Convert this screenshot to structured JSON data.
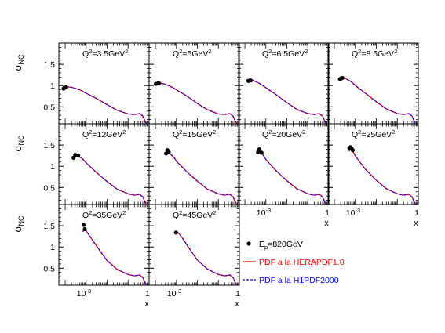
{
  "colors": {
    "data_points": "#000000",
    "herapdf": "#ff0000",
    "h1pdf": "#0000ff",
    "frame": "#000000",
    "background": "#ffffff"
  },
  "legend": {
    "data": {
      "main": "E",
      "sub": "p",
      "rest": "=820GeV"
    },
    "herapdf": "PDF a la HERAPDF1.0",
    "h1pdf": "PDF a la H1PDF2000"
  },
  "chart_data": {
    "type": "scatter",
    "y_axis_label": {
      "main": "σ",
      "sub": "NC"
    },
    "x_axis_label": "x",
    "x_scale": "log",
    "x_range": [
      5e-05,
      1
    ],
    "y_range": [
      0.1,
      2.0
    ],
    "y_ticks": [
      {
        "value": 0.5,
        "label": "0.5"
      },
      {
        "value": 1.0,
        "label": "1"
      },
      {
        "value": 1.5,
        "label": "1.5"
      }
    ],
    "x_ticks": [
      {
        "value": 0.001,
        "base": "10",
        "exp": "-3"
      },
      {
        "value": 1,
        "label": "1"
      }
    ],
    "panels": [
      {
        "label": {
          "pre": "Q",
          "sup": "2",
          "mid": "=3.5GeV",
          "sup2": "2"
        },
        "q2": 3.5,
        "points": [
          {
            "x": 8.5e-05,
            "y": 0.93
          },
          {
            "x": 9.5e-05,
            "y": 0.95
          },
          {
            "x": 0.000112,
            "y": 0.96
          }
        ],
        "curve": [
          [
            8e-05,
            0.9
          ],
          [
            0.0001,
            0.94
          ],
          [
            0.00013,
            0.97
          ],
          [
            0.0002,
            0.96
          ],
          [
            0.0005,
            0.9
          ],
          [
            0.001,
            0.82
          ],
          [
            0.003,
            0.7
          ],
          [
            0.01,
            0.55
          ],
          [
            0.03,
            0.42
          ],
          [
            0.1,
            0.33
          ],
          [
            0.2,
            0.32
          ],
          [
            0.35,
            0.34
          ],
          [
            0.5,
            0.28
          ],
          [
            0.65,
            0.15
          ],
          [
            0.75,
            0.11
          ]
        ]
      },
      {
        "label": {
          "pre": "Q",
          "sup": "2",
          "mid": "=5GeV",
          "sup2": "2"
        },
        "q2": 5,
        "points": [
          {
            "x": 0.000105,
            "y": 1.04
          },
          {
            "x": 0.00013,
            "y": 1.05
          },
          {
            "x": 0.00015,
            "y": 1.05
          }
        ],
        "curve": [
          [
            0.0001,
            1.02
          ],
          [
            0.00013,
            1.05
          ],
          [
            0.00018,
            1.06
          ],
          [
            0.0003,
            1.03
          ],
          [
            0.0007,
            0.95
          ],
          [
            0.001,
            0.9
          ],
          [
            0.003,
            0.76
          ],
          [
            0.01,
            0.58
          ],
          [
            0.03,
            0.43
          ],
          [
            0.1,
            0.33
          ],
          [
            0.2,
            0.32
          ],
          [
            0.35,
            0.34
          ],
          [
            0.5,
            0.28
          ],
          [
            0.65,
            0.15
          ],
          [
            0.75,
            0.11
          ]
        ]
      },
      {
        "label": {
          "pre": "Q",
          "sup": "2",
          "mid": "=6.5GeV",
          "sup2": "2"
        },
        "q2": 6.5,
        "points": [
          {
            "x": 0.000145,
            "y": 1.11
          },
          {
            "x": 0.00017,
            "y": 1.12
          },
          {
            "x": 0.00019,
            "y": 1.12
          }
        ],
        "curve": [
          [
            0.00014,
            1.1
          ],
          [
            0.00018,
            1.13
          ],
          [
            0.00025,
            1.12
          ],
          [
            0.0005,
            1.05
          ],
          [
            0.001,
            0.95
          ],
          [
            0.003,
            0.79
          ],
          [
            0.01,
            0.6
          ],
          [
            0.03,
            0.44
          ],
          [
            0.1,
            0.34
          ],
          [
            0.2,
            0.32
          ],
          [
            0.35,
            0.34
          ],
          [
            0.5,
            0.28
          ],
          [
            0.65,
            0.15
          ],
          [
            0.75,
            0.11
          ]
        ]
      },
      {
        "label": {
          "pre": "Q",
          "sup": "2",
          "mid": "=8.5GeV",
          "sup2": "2"
        },
        "q2": 8.5,
        "points": [
          {
            "x": 0.000185,
            "y": 1.15
          },
          {
            "x": 0.00021,
            "y": 1.17
          },
          {
            "x": 0.00024,
            "y": 1.18
          }
        ],
        "curve": [
          [
            0.00018,
            1.14
          ],
          [
            0.00023,
            1.18
          ],
          [
            0.0003,
            1.18
          ],
          [
            0.0006,
            1.1
          ],
          [
            0.001,
            1.0
          ],
          [
            0.003,
            0.82
          ],
          [
            0.01,
            0.62
          ],
          [
            0.03,
            0.45
          ],
          [
            0.1,
            0.34
          ],
          [
            0.2,
            0.32
          ],
          [
            0.35,
            0.34
          ],
          [
            0.5,
            0.28
          ],
          [
            0.65,
            0.15
          ],
          [
            0.75,
            0.11
          ]
        ]
      },
      {
        "label": {
          "pre": "Q",
          "sup": "2",
          "mid": "=12GeV",
          "sup2": "2"
        },
        "q2": 12,
        "points": [
          {
            "x": 0.00025,
            "y": 1.2
          },
          {
            "x": 0.0003,
            "y": 1.27
          },
          {
            "x": 0.00042,
            "y": 1.25
          }
        ],
        "curve": [
          [
            0.00024,
            1.2
          ],
          [
            0.0003,
            1.26
          ],
          [
            0.0004,
            1.25
          ],
          [
            0.0007,
            1.17
          ],
          [
            0.001,
            1.08
          ],
          [
            0.003,
            0.86
          ],
          [
            0.01,
            0.64
          ],
          [
            0.03,
            0.46
          ],
          [
            0.1,
            0.35
          ],
          [
            0.2,
            0.32
          ],
          [
            0.35,
            0.34
          ],
          [
            0.5,
            0.28
          ],
          [
            0.65,
            0.15
          ],
          [
            0.75,
            0.11
          ]
        ]
      },
      {
        "label": {
          "pre": "Q",
          "sup": "2",
          "mid": "=15GeV",
          "sup2": "2"
        },
        "q2": 15,
        "points": [
          {
            "x": 0.00032,
            "y": 1.3
          },
          {
            "x": 0.00037,
            "y": 1.38
          },
          {
            "x": 0.00043,
            "y": 1.33
          }
        ],
        "curve": [
          [
            0.0003,
            1.26
          ],
          [
            0.00037,
            1.33
          ],
          [
            0.00048,
            1.3
          ],
          [
            0.0008,
            1.2
          ],
          [
            0.001,
            1.12
          ],
          [
            0.003,
            0.88
          ],
          [
            0.01,
            0.65
          ],
          [
            0.03,
            0.46
          ],
          [
            0.1,
            0.35
          ],
          [
            0.2,
            0.32
          ],
          [
            0.35,
            0.34
          ],
          [
            0.5,
            0.28
          ],
          [
            0.65,
            0.15
          ],
          [
            0.75,
            0.11
          ]
        ]
      },
      {
        "label": {
          "pre": "Q",
          "sup": "2",
          "mid": "=20GeV",
          "sup2": "2"
        },
        "q2": 20,
        "points": [
          {
            "x": 0.00042,
            "y": 1.33
          },
          {
            "x": 0.00049,
            "y": 1.4
          },
          {
            "x": 0.00062,
            "y": 1.32
          }
        ],
        "curve": [
          [
            0.0004,
            1.32
          ],
          [
            0.0005,
            1.36
          ],
          [
            0.00065,
            1.31
          ],
          [
            0.001,
            1.16
          ],
          [
            0.003,
            0.9
          ],
          [
            0.01,
            0.66
          ],
          [
            0.03,
            0.47
          ],
          [
            0.1,
            0.35
          ],
          [
            0.2,
            0.32
          ],
          [
            0.35,
            0.34
          ],
          [
            0.5,
            0.28
          ],
          [
            0.65,
            0.15
          ],
          [
            0.75,
            0.11
          ]
        ]
      },
      {
        "label": {
          "pre": "Q",
          "sup": "2",
          "mid": "=25GeV",
          "sup2": "2"
        },
        "q2": 25,
        "points": [
          {
            "x": 0.00052,
            "y": 1.43
          },
          {
            "x": 0.00058,
            "y": 1.45
          },
          {
            "x": 0.00066,
            "y": 1.42
          },
          {
            "x": 0.00075,
            "y": 1.38
          }
        ],
        "curve": [
          [
            0.0005,
            1.36
          ],
          [
            0.00062,
            1.4
          ],
          [
            0.0008,
            1.33
          ],
          [
            0.001,
            1.24
          ],
          [
            0.003,
            0.93
          ],
          [
            0.01,
            0.67
          ],
          [
            0.03,
            0.47
          ],
          [
            0.1,
            0.35
          ],
          [
            0.2,
            0.32
          ],
          [
            0.35,
            0.34
          ],
          [
            0.5,
            0.28
          ],
          [
            0.65,
            0.15
          ],
          [
            0.75,
            0.11
          ]
        ]
      },
      {
        "label": {
          "pre": "Q",
          "sup": "2",
          "mid": "=35GeV",
          "sup2": "2"
        },
        "q2": 35,
        "points": [
          {
            "x": 0.00075,
            "y": 1.52
          },
          {
            "x": 0.00086,
            "y": 1.42
          }
        ],
        "curve": [
          [
            0.0007,
            1.36
          ],
          [
            0.00085,
            1.42
          ],
          [
            0.001,
            1.38
          ],
          [
            0.002,
            1.16
          ],
          [
            0.005,
            0.88
          ],
          [
            0.01,
            0.68
          ],
          [
            0.03,
            0.47
          ],
          [
            0.1,
            0.35
          ],
          [
            0.2,
            0.32
          ],
          [
            0.35,
            0.34
          ],
          [
            0.5,
            0.28
          ],
          [
            0.65,
            0.15
          ],
          [
            0.75,
            0.11
          ]
        ]
      },
      {
        "label": {
          "pre": "Q",
          "sup": "2",
          "mid": "=45GeV",
          "sup2": "2"
        },
        "q2": 45,
        "points": [
          {
            "x": 0.00095,
            "y": 1.34
          }
        ],
        "curve": [
          [
            0.00088,
            1.3
          ],
          [
            0.001,
            1.36
          ],
          [
            0.0013,
            1.32
          ],
          [
            0.002,
            1.2
          ],
          [
            0.005,
            0.9
          ],
          [
            0.01,
            0.69
          ],
          [
            0.03,
            0.48
          ],
          [
            0.1,
            0.35
          ],
          [
            0.2,
            0.32
          ],
          [
            0.35,
            0.34
          ],
          [
            0.5,
            0.28
          ],
          [
            0.65,
            0.15
          ],
          [
            0.75,
            0.11
          ]
        ]
      }
    ]
  }
}
